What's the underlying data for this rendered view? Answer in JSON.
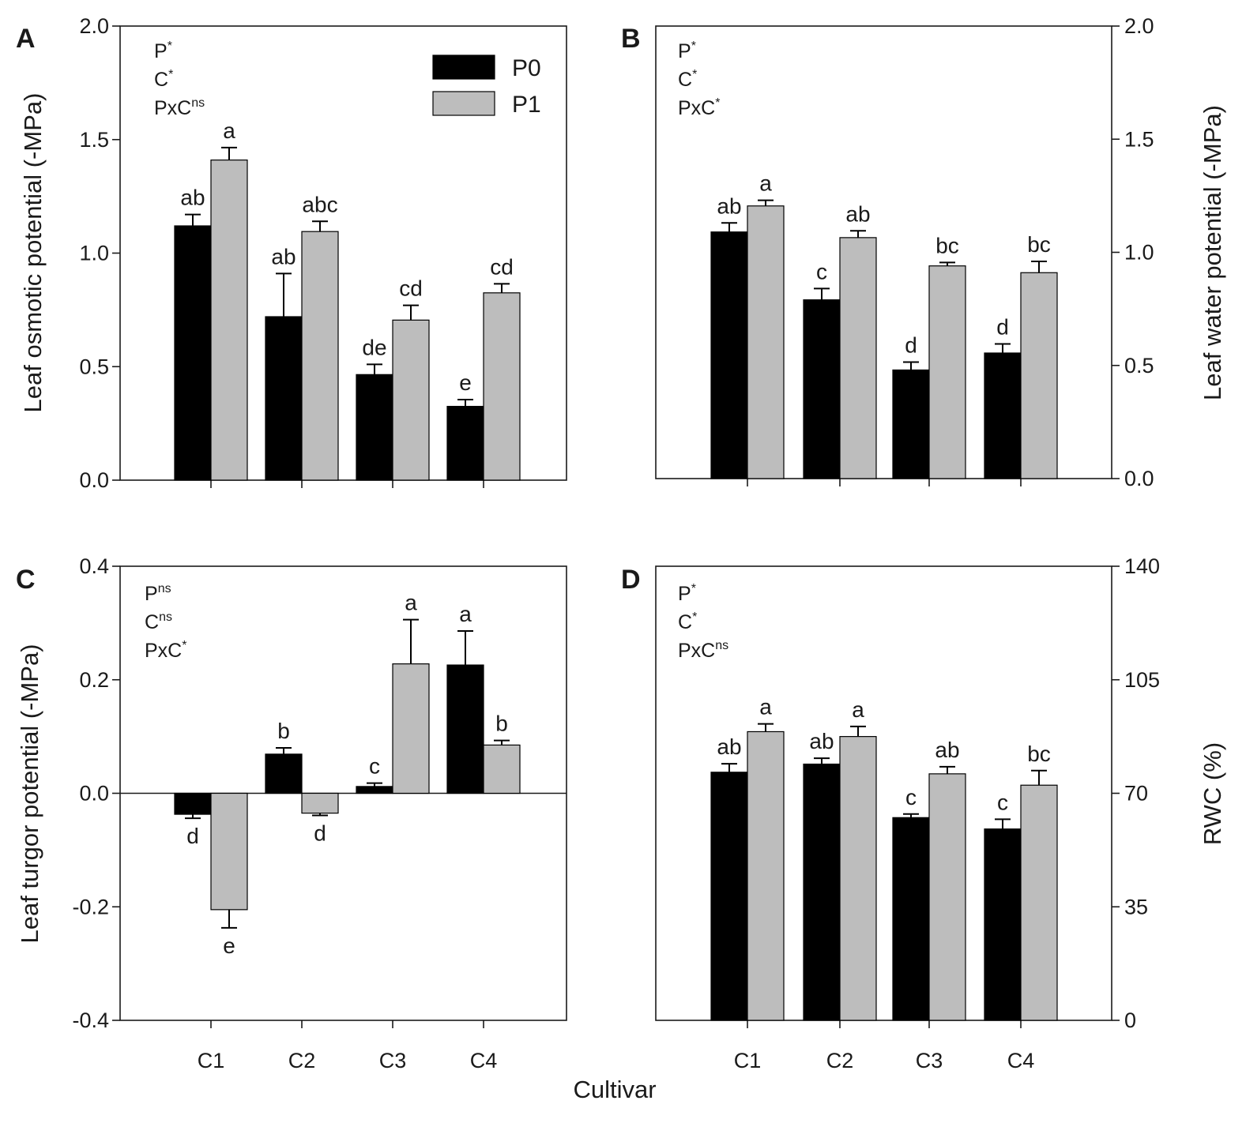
{
  "figure": {
    "shared_xlabel": "Cultivar",
    "legend": [
      {
        "key": "P0",
        "label": "P0",
        "color": "#000000"
      },
      {
        "key": "P1",
        "label": "P1",
        "color": "#bdbdbd"
      }
    ]
  },
  "chart_data": [
    {
      "panel": "A",
      "type": "bar",
      "ylabel": "Leaf osmotic potential (-MPa)",
      "ylim": [
        0,
        2
      ],
      "yticks": [
        0,
        0.5,
        1.0,
        1.5,
        2.0
      ],
      "ytick_labels": [
        "0.0",
        "0.5",
        "1.0",
        "1.5",
        "2.0"
      ],
      "yaxis_side": "left",
      "categories": [
        "C1",
        "C2",
        "C3",
        "C4"
      ],
      "show_xticklabels": false,
      "series": [
        {
          "name": "P0",
          "values": [
            1.12,
            0.72,
            0.465,
            0.325
          ],
          "errors": [
            0.05,
            0.19,
            0.045,
            0.03
          ],
          "letters": [
            "ab",
            "ab",
            "de",
            "e"
          ]
        },
        {
          "name": "P1",
          "values": [
            1.41,
            1.095,
            0.705,
            0.825
          ],
          "errors": [
            0.055,
            0.045,
            0.065,
            0.04
          ],
          "letters": [
            "a",
            "abc",
            "cd",
            "cd"
          ]
        }
      ],
      "stats": [
        {
          "base": "P",
          "sup": "*"
        },
        {
          "base": "C",
          "sup": "*"
        },
        {
          "base": "PxC",
          "sup": "ns"
        }
      ],
      "legend_position": "top-right"
    },
    {
      "panel": "B",
      "type": "bar",
      "ylabel": "Leaf water potential (-MPa)",
      "ylim": [
        0,
        2
      ],
      "yticks": [
        0,
        0.5,
        1.0,
        1.5,
        2.0
      ],
      "ytick_labels": [
        "0.0",
        "0.5",
        "1.0",
        "1.5",
        "2.0"
      ],
      "yaxis_side": "right",
      "categories": [
        "C1",
        "C2",
        "C3",
        "C4"
      ],
      "show_xticklabels": false,
      "series": [
        {
          "name": "P0",
          "values": [
            1.09,
            0.79,
            0.48,
            0.555
          ],
          "errors": [
            0.04,
            0.05,
            0.035,
            0.04
          ],
          "letters": [
            "ab",
            "c",
            "d",
            "d"
          ]
        },
        {
          "name": "P1",
          "values": [
            1.205,
            1.065,
            0.94,
            0.91
          ],
          "errors": [
            0.025,
            0.03,
            0.015,
            0.05
          ],
          "letters": [
            "a",
            "ab",
            "bc",
            "bc"
          ]
        }
      ],
      "stats": [
        {
          "base": "P",
          "sup": "*"
        },
        {
          "base": "C",
          "sup": "*"
        },
        {
          "base": "PxC",
          "sup": "*"
        }
      ]
    },
    {
      "panel": "C",
      "type": "bar",
      "ylabel": "Leaf turgor potential (-MPa)",
      "ylim": [
        -0.4,
        0.4
      ],
      "yticks": [
        -0.4,
        -0.2,
        0,
        0.2,
        0.4
      ],
      "ytick_labels": [
        "-0.4",
        "-0.2",
        "0.0",
        "0.2",
        "0.4"
      ],
      "yaxis_side": "left",
      "categories": [
        "C1",
        "C2",
        "C3",
        "C4"
      ],
      "show_xticklabels": true,
      "series": [
        {
          "name": "P0",
          "values": [
            -0.037,
            0.069,
            0.012,
            0.226
          ],
          "errors": [
            0.007,
            0.011,
            0.006,
            0.06
          ],
          "letters": [
            "d",
            "b",
            "c",
            "a"
          ]
        },
        {
          "name": "P1",
          "values": [
            -0.205,
            -0.035,
            0.228,
            0.085
          ],
          "errors": [
            0.032,
            0.004,
            0.078,
            0.008
          ],
          "letters": [
            "e",
            "d",
            "a",
            "b"
          ]
        }
      ],
      "stats": [
        {
          "base": "P",
          "sup": "ns"
        },
        {
          "base": "C",
          "sup": "ns"
        },
        {
          "base": "PxC",
          "sup": "*"
        }
      ]
    },
    {
      "panel": "D",
      "type": "bar",
      "ylabel": "RWC (%)",
      "ylim": [
        0,
        140
      ],
      "yticks": [
        0,
        35,
        70,
        105,
        140
      ],
      "ytick_labels": [
        "0",
        "35",
        "70",
        "105",
        "140"
      ],
      "yaxis_side": "right",
      "categories": [
        "C1",
        "C2",
        "C3",
        "C4"
      ],
      "show_xticklabels": true,
      "series": [
        {
          "name": "P0",
          "values": [
            76.5,
            79.0,
            62.5,
            59.0
          ],
          "errors": [
            2.6,
            1.8,
            1.1,
            3.0
          ],
          "letters": [
            "ab",
            "ab",
            "c",
            "c"
          ]
        },
        {
          "name": "P1",
          "values": [
            89.0,
            87.5,
            76.0,
            72.5
          ],
          "errors": [
            2.4,
            3.1,
            2.2,
            4.5
          ],
          "letters": [
            "a",
            "a",
            "ab",
            "bc"
          ]
        }
      ],
      "stats": [
        {
          "base": "P",
          "sup": "*"
        },
        {
          "base": "C",
          "sup": "*"
        },
        {
          "base": "PxC",
          "sup": "ns"
        }
      ]
    }
  ]
}
